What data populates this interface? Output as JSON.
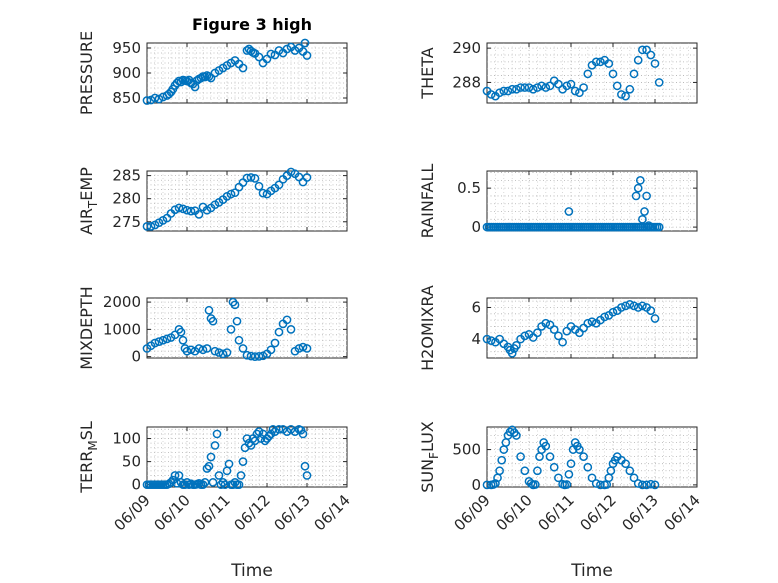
{
  "figure": {
    "title": "Figure 3 high",
    "marker_color": "#0072BD",
    "xlabel": "Time"
  },
  "chart_data": [
    {
      "type": "scatter",
      "title": "Figure 3 high",
      "ylabel": "PRESSURE",
      "sub": "",
      "xlim": [
        0,
        5
      ],
      "ylim": [
        840,
        960
      ],
      "yticks": [
        850,
        900,
        950
      ],
      "xticks": [
        "06/09",
        "06/10",
        "06/11",
        "06/12",
        "06/13",
        "06/14"
      ],
      "show_xticks": false,
      "x": [
        0.0,
        0.1,
        0.2,
        0.3,
        0.4,
        0.5,
        0.55,
        0.6,
        0.65,
        0.7,
        0.75,
        0.8,
        0.85,
        0.9,
        0.95,
        1.0,
        1.05,
        1.1,
        1.15,
        1.2,
        1.25,
        1.3,
        1.35,
        1.4,
        1.45,
        1.5,
        1.55,
        1.6,
        1.7,
        1.8,
        1.9,
        2.0,
        2.1,
        2.2,
        2.3,
        2.4,
        2.5,
        2.55,
        2.6,
        2.65,
        2.7,
        2.8,
        2.9,
        3.0,
        3.1,
        3.2,
        3.3,
        3.4,
        3.5,
        3.6,
        3.7,
        3.8,
        3.9,
        3.95,
        4.0
      ],
      "y": [
        845,
        846,
        850,
        848,
        852,
        855,
        858,
        862,
        868,
        875,
        880,
        884,
        882,
        886,
        885,
        884,
        886,
        880,
        878,
        872,
        885,
        888,
        890,
        893,
        892,
        895,
        893,
        890,
        900,
        905,
        910,
        915,
        920,
        925,
        918,
        910,
        945,
        948,
        944,
        941,
        939,
        932,
        920,
        928,
        938,
        936,
        945,
        940,
        948,
        952,
        945,
        950,
        943,
        960,
        935
      ]
    },
    {
      "type": "scatter",
      "title": "",
      "ylabel": "THETA",
      "sub": "",
      "xlim": [
        0,
        5
      ],
      "ylim": [
        286.8,
        290.3
      ],
      "yticks": [
        288,
        290
      ],
      "xticks": [
        "06/09",
        "06/10",
        "06/11",
        "06/12",
        "06/13",
        "06/14"
      ],
      "show_xticks": false,
      "x": [
        0.0,
        0.1,
        0.2,
        0.3,
        0.4,
        0.5,
        0.6,
        0.7,
        0.8,
        0.9,
        1.0,
        1.1,
        1.2,
        1.3,
        1.4,
        1.5,
        1.6,
        1.7,
        1.8,
        1.9,
        2.0,
        2.1,
        2.2,
        2.3,
        2.4,
        2.5,
        2.6,
        2.7,
        2.8,
        2.9,
        3.0,
        3.1,
        3.2,
        3.3,
        3.4,
        3.5,
        3.6,
        3.7,
        3.8,
        3.9,
        4.0,
        4.1
      ],
      "y": [
        287.5,
        287.3,
        287.2,
        287.4,
        287.5,
        287.5,
        287.6,
        287.6,
        287.7,
        287.7,
        287.7,
        287.6,
        287.7,
        287.8,
        287.7,
        287.8,
        288.1,
        287.9,
        287.6,
        287.8,
        287.9,
        287.5,
        287.4,
        287.7,
        288.5,
        289.0,
        289.2,
        289.2,
        289.3,
        289.1,
        288.5,
        287.8,
        287.3,
        287.2,
        287.6,
        288.5,
        289.3,
        289.9,
        289.9,
        289.6,
        289.1,
        288.0
      ]
    },
    {
      "type": "scatter",
      "title": "",
      "ylabel": "AIR",
      "sub": "T",
      "ylabel_rest": "EMP",
      "xlim": [
        0,
        5
      ],
      "ylim": [
        273,
        286
      ],
      "yticks": [
        275,
        280,
        285
      ],
      "xticks": [
        "06/09",
        "06/10",
        "06/11",
        "06/12",
        "06/13",
        "06/14"
      ],
      "show_xticks": false,
      "x": [
        0.0,
        0.1,
        0.2,
        0.3,
        0.4,
        0.5,
        0.6,
        0.7,
        0.8,
        0.9,
        1.0,
        1.1,
        1.2,
        1.3,
        1.4,
        1.5,
        1.6,
        1.7,
        1.8,
        1.9,
        2.0,
        2.1,
        2.2,
        2.3,
        2.4,
        2.5,
        2.6,
        2.7,
        2.8,
        2.9,
        3.0,
        3.1,
        3.2,
        3.3,
        3.4,
        3.5,
        3.6,
        3.7,
        3.8,
        3.9,
        4.0
      ],
      "y": [
        274.0,
        274.0,
        274.3,
        274.8,
        275.3,
        275.8,
        276.8,
        277.6,
        278.0,
        277.8,
        277.5,
        277.3,
        277.4,
        276.6,
        278.2,
        277.5,
        278.0,
        278.7,
        279.2,
        279.8,
        280.5,
        281.0,
        281.3,
        282.5,
        283.5,
        284.5,
        284.6,
        284.4,
        282.7,
        281.2,
        281.0,
        281.7,
        282.3,
        283.0,
        284.2,
        285.0,
        285.8,
        285.4,
        284.7,
        283.6,
        284.6
      ]
    },
    {
      "type": "scatter",
      "title": "",
      "ylabel": "RAINFALL",
      "sub": "",
      "xlim": [
        0,
        5
      ],
      "ylim": [
        -0.05,
        0.72
      ],
      "yticks": [
        0,
        0.5
      ],
      "xticks": [
        "06/09",
        "06/10",
        "06/11",
        "06/12",
        "06/13",
        "06/14"
      ],
      "show_xticks": false,
      "x": [
        0.0,
        0.05,
        0.1,
        0.15,
        0.2,
        0.25,
        0.3,
        0.35,
        0.4,
        0.45,
        0.5,
        0.55,
        0.6,
        0.65,
        0.7,
        0.75,
        0.8,
        0.85,
        0.9,
        0.95,
        1.0,
        1.05,
        1.1,
        1.15,
        1.2,
        1.25,
        1.3,
        1.35,
        1.4,
        1.45,
        1.5,
        1.55,
        1.6,
        1.65,
        1.7,
        1.75,
        1.8,
        1.85,
        1.9,
        1.95,
        2.0,
        2.05,
        2.1,
        2.15,
        2.2,
        2.25,
        2.3,
        2.35,
        2.4,
        2.45,
        2.5,
        2.55,
        2.6,
        2.65,
        2.7,
        2.75,
        2.8,
        2.85,
        2.9,
        2.95,
        3.0,
        3.05,
        3.1,
        3.15,
        3.2,
        3.25,
        3.3,
        3.35,
        3.4,
        3.45,
        3.5,
        3.55,
        3.6,
        3.65,
        3.7,
        3.75,
        3.8,
        3.85,
        3.9,
        3.95,
        4.0,
        4.05,
        4.1,
        1.95,
        3.55,
        3.6,
        3.65,
        3.7,
        3.75,
        3.8,
        3.85
      ],
      "y": [
        0,
        0,
        0,
        0,
        0,
        0,
        0,
        0,
        0,
        0,
        0,
        0,
        0,
        0,
        0,
        0,
        0,
        0,
        0,
        0,
        0,
        0,
        0,
        0,
        0,
        0,
        0,
        0,
        0,
        0,
        0,
        0,
        0,
        0,
        0,
        0,
        0,
        0,
        0,
        0,
        0,
        0,
        0,
        0,
        0,
        0,
        0,
        0,
        0,
        0,
        0,
        0,
        0,
        0,
        0,
        0,
        0,
        0,
        0,
        0,
        0,
        0,
        0,
        0,
        0,
        0,
        0,
        0,
        0,
        0,
        0,
        0,
        0,
        0,
        0,
        0,
        0,
        0,
        0,
        0,
        0,
        0,
        0,
        0.2,
        0.4,
        0.5,
        0.6,
        0.1,
        0.2,
        0.4,
        0.02
      ]
    },
    {
      "type": "scatter",
      "title": "",
      "ylabel": "MIXDEPTH",
      "sub": "",
      "xlim": [
        0,
        5
      ],
      "ylim": [
        -50,
        2150
      ],
      "yticks": [
        0,
        1000,
        2000
      ],
      "xticks": [
        "06/09",
        "06/10",
        "06/11",
        "06/12",
        "06/13",
        "06/14"
      ],
      "show_xticks": false,
      "x": [
        0.0,
        0.1,
        0.2,
        0.3,
        0.4,
        0.5,
        0.6,
        0.7,
        0.8,
        0.85,
        0.9,
        0.95,
        1.0,
        1.1,
        1.2,
        1.3,
        1.4,
        1.5,
        1.55,
        1.6,
        1.65,
        1.7,
        1.8,
        1.9,
        2.0,
        2.1,
        2.15,
        2.2,
        2.25,
        2.3,
        2.4,
        2.5,
        2.6,
        2.7,
        2.8,
        2.9,
        3.0,
        3.1,
        3.2,
        3.3,
        3.4,
        3.5,
        3.6,
        3.7,
        3.8,
        3.9,
        4.0
      ],
      "y": [
        300,
        400,
        500,
        550,
        600,
        650,
        700,
        800,
        1000,
        900,
        600,
        300,
        200,
        250,
        200,
        300,
        250,
        300,
        1700,
        1400,
        1300,
        200,
        150,
        100,
        150,
        1000,
        2000,
        1900,
        1300,
        600,
        300,
        50,
        20,
        0,
        10,
        30,
        100,
        250,
        500,
        900,
        1200,
        1350,
        1000,
        200,
        300,
        350,
        300
      ]
    },
    {
      "type": "scatter",
      "title": "",
      "ylabel": "H2OMIXRA",
      "sub": "",
      "xlim": [
        0,
        5
      ],
      "ylim": [
        2.8,
        6.6
      ],
      "yticks": [
        4,
        6
      ],
      "xticks": [
        "06/09",
        "06/10",
        "06/11",
        "06/12",
        "06/13",
        "06/14"
      ],
      "show_xticks": false,
      "x": [
        0.0,
        0.1,
        0.2,
        0.3,
        0.4,
        0.5,
        0.55,
        0.6,
        0.65,
        0.7,
        0.8,
        0.9,
        1.0,
        1.1,
        1.2,
        1.3,
        1.4,
        1.5,
        1.6,
        1.7,
        1.8,
        1.9,
        2.0,
        2.1,
        2.2,
        2.3,
        2.4,
        2.5,
        2.6,
        2.7,
        2.8,
        2.9,
        3.0,
        3.1,
        3.2,
        3.3,
        3.4,
        3.5,
        3.6,
        3.7,
        3.8,
        3.9,
        4.0
      ],
      "y": [
        4.0,
        3.9,
        3.8,
        4.0,
        3.7,
        3.5,
        3.3,
        3.1,
        3.4,
        3.6,
        4.0,
        4.2,
        4.3,
        4.1,
        4.4,
        4.8,
        5.0,
        4.9,
        4.6,
        4.2,
        3.8,
        4.5,
        4.8,
        4.6,
        4.4,
        4.7,
        5.0,
        5.1,
        5.0,
        5.2,
        5.4,
        5.5,
        5.7,
        5.8,
        6.0,
        6.1,
        6.2,
        6.1,
        6.0,
        6.1,
        6.0,
        5.8,
        5.3
      ]
    },
    {
      "type": "scatter",
      "title": "",
      "ylabel": "TERR",
      "sub": "M",
      "ylabel_rest": "SL",
      "xlim": [
        0,
        5
      ],
      "ylim": [
        -5,
        125
      ],
      "yticks": [
        0,
        50,
        100
      ],
      "xticks": [
        "06/09",
        "06/10",
        "06/11",
        "06/12",
        "06/13",
        "06/14"
      ],
      "show_xticks": true,
      "x": [
        0.0,
        0.05,
        0.1,
        0.15,
        0.2,
        0.25,
        0.3,
        0.35,
        0.4,
        0.45,
        0.5,
        0.55,
        0.6,
        0.65,
        0.7,
        0.75,
        0.8,
        0.85,
        0.9,
        0.95,
        1.0,
        1.05,
        1.1,
        1.15,
        1.2,
        1.25,
        1.3,
        1.35,
        1.4,
        1.45,
        1.5,
        1.55,
        1.6,
        1.65,
        1.7,
        1.75,
        1.8,
        1.85,
        1.9,
        1.95,
        2.0,
        2.05,
        2.1,
        2.15,
        2.2,
        2.25,
        2.3,
        2.35,
        2.4,
        2.45,
        2.5,
        2.55,
        2.6,
        2.65,
        2.7,
        2.75,
        2.8,
        2.85,
        2.9,
        2.95,
        3.0,
        3.05,
        3.1,
        3.15,
        3.2,
        3.3,
        3.4,
        3.5,
        3.6,
        3.7,
        3.8,
        3.85,
        3.9,
        3.95,
        4.0
      ],
      "y": [
        0,
        0,
        0,
        0,
        0,
        0,
        0,
        0,
        0,
        0,
        0,
        2,
        5,
        10,
        20,
        3,
        20,
        5,
        0,
        0,
        5,
        0,
        2,
        0,
        0,
        1,
        3,
        0,
        0,
        5,
        35,
        40,
        60,
        5,
        85,
        110,
        20,
        0,
        5,
        0,
        30,
        45,
        0,
        0,
        5,
        0,
        0,
        20,
        50,
        80,
        100,
        90,
        85,
        100,
        95,
        110,
        115,
        100,
        110,
        95,
        100,
        105,
        110,
        120,
        115,
        120,
        120,
        115,
        120,
        115,
        120,
        118,
        110,
        40,
        20
      ]
    },
    {
      "type": "scatter",
      "title": "",
      "ylabel": "SUN",
      "sub": "F",
      "ylabel_rest": "LUX",
      "xlim": [
        0,
        5
      ],
      "ylim": [
        -30,
        820
      ],
      "yticks": [
        0,
        500
      ],
      "xticks": [
        "06/09",
        "06/10",
        "06/11",
        "06/12",
        "06/13",
        "06/14"
      ],
      "show_xticks": true,
      "x": [
        0.0,
        0.1,
        0.15,
        0.2,
        0.25,
        0.3,
        0.35,
        0.4,
        0.45,
        0.5,
        0.55,
        0.6,
        0.65,
        0.7,
        0.8,
        0.9,
        1.0,
        1.05,
        1.1,
        1.15,
        1.2,
        1.25,
        1.3,
        1.35,
        1.4,
        1.5,
        1.6,
        1.7,
        1.8,
        1.85,
        1.9,
        1.95,
        2.0,
        2.05,
        2.1,
        2.15,
        2.2,
        2.3,
        2.4,
        2.5,
        2.6,
        2.7,
        2.8,
        2.85,
        2.9,
        2.95,
        3.0,
        3.05,
        3.1,
        3.2,
        3.3,
        3.4,
        3.5,
        3.6,
        3.7,
        3.8,
        3.9,
        4.0
      ],
      "y": [
        0,
        0,
        5,
        20,
        100,
        200,
        350,
        500,
        600,
        700,
        750,
        780,
        740,
        700,
        400,
        200,
        50,
        20,
        0,
        5,
        200,
        400,
        500,
        600,
        550,
        400,
        250,
        100,
        10,
        0,
        5,
        150,
        300,
        500,
        600,
        550,
        500,
        400,
        250,
        100,
        20,
        0,
        0,
        5,
        100,
        200,
        300,
        350,
        400,
        350,
        300,
        200,
        100,
        20,
        0,
        0,
        10,
        0
      ]
    }
  ]
}
